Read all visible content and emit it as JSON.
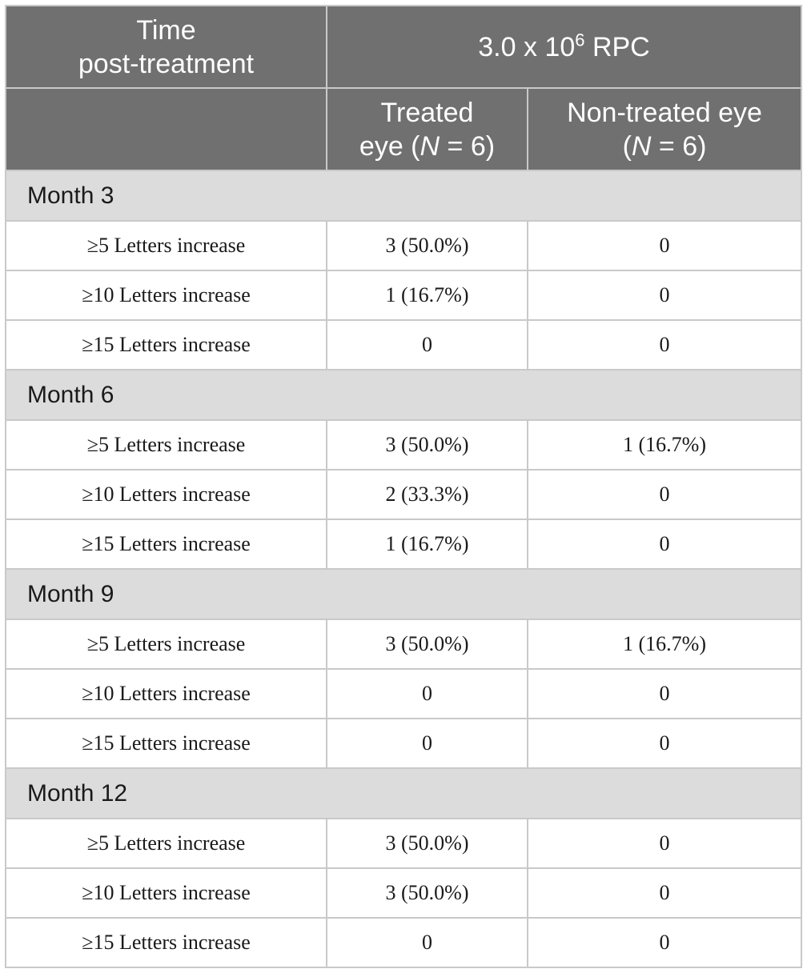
{
  "header": {
    "col1_line1": "Time",
    "col1_line2": "post-treatment",
    "dose_base": "3.0 x 10",
    "dose_exp": "6",
    "dose_unit": " RPC",
    "treated_line1": "Treated",
    "treated_line2_pre": "eye (",
    "treated_n": "N",
    "treated_line2_post": " = 6)",
    "nontreated_line1": "Non-treated eye",
    "nontreated_line2_pre": "(",
    "nontreated_n": "N",
    "nontreated_line2_post": " = 6)"
  },
  "sections": [
    {
      "label": "Month 3",
      "rows": [
        {
          "metric": "≥5 Letters increase",
          "treated": "3 (50.0%)",
          "nontreated": "0"
        },
        {
          "metric": "≥10 Letters increase",
          "treated": "1 (16.7%)",
          "nontreated": "0"
        },
        {
          "metric": "≥15 Letters increase",
          "treated": "0",
          "nontreated": "0"
        }
      ]
    },
    {
      "label": "Month 6",
      "rows": [
        {
          "metric": "≥5 Letters increase",
          "treated": "3 (50.0%)",
          "nontreated": "1 (16.7%)"
        },
        {
          "metric": "≥10 Letters increase",
          "treated": "2 (33.3%)",
          "nontreated": "0"
        },
        {
          "metric": "≥15 Letters increase",
          "treated": "1 (16.7%)",
          "nontreated": "0"
        }
      ]
    },
    {
      "label": "Month 9",
      "rows": [
        {
          "metric": "≥5 Letters increase",
          "treated": "3 (50.0%)",
          "nontreated": "1 (16.7%)"
        },
        {
          "metric": "≥10 Letters increase",
          "treated": "0",
          "nontreated": "0"
        },
        {
          "metric": "≥15 Letters increase",
          "treated": "0",
          "nontreated": "0"
        }
      ]
    },
    {
      "label": "Month 12",
      "rows": [
        {
          "metric": "≥5 Letters increase",
          "treated": "3 (50.0%)",
          "nontreated": "0"
        },
        {
          "metric": "≥10 Letters increase",
          "treated": "3 (50.0%)",
          "nontreated": "0"
        },
        {
          "metric": "≥15 Letters increase",
          "treated": "0",
          "nontreated": "0"
        }
      ]
    }
  ]
}
